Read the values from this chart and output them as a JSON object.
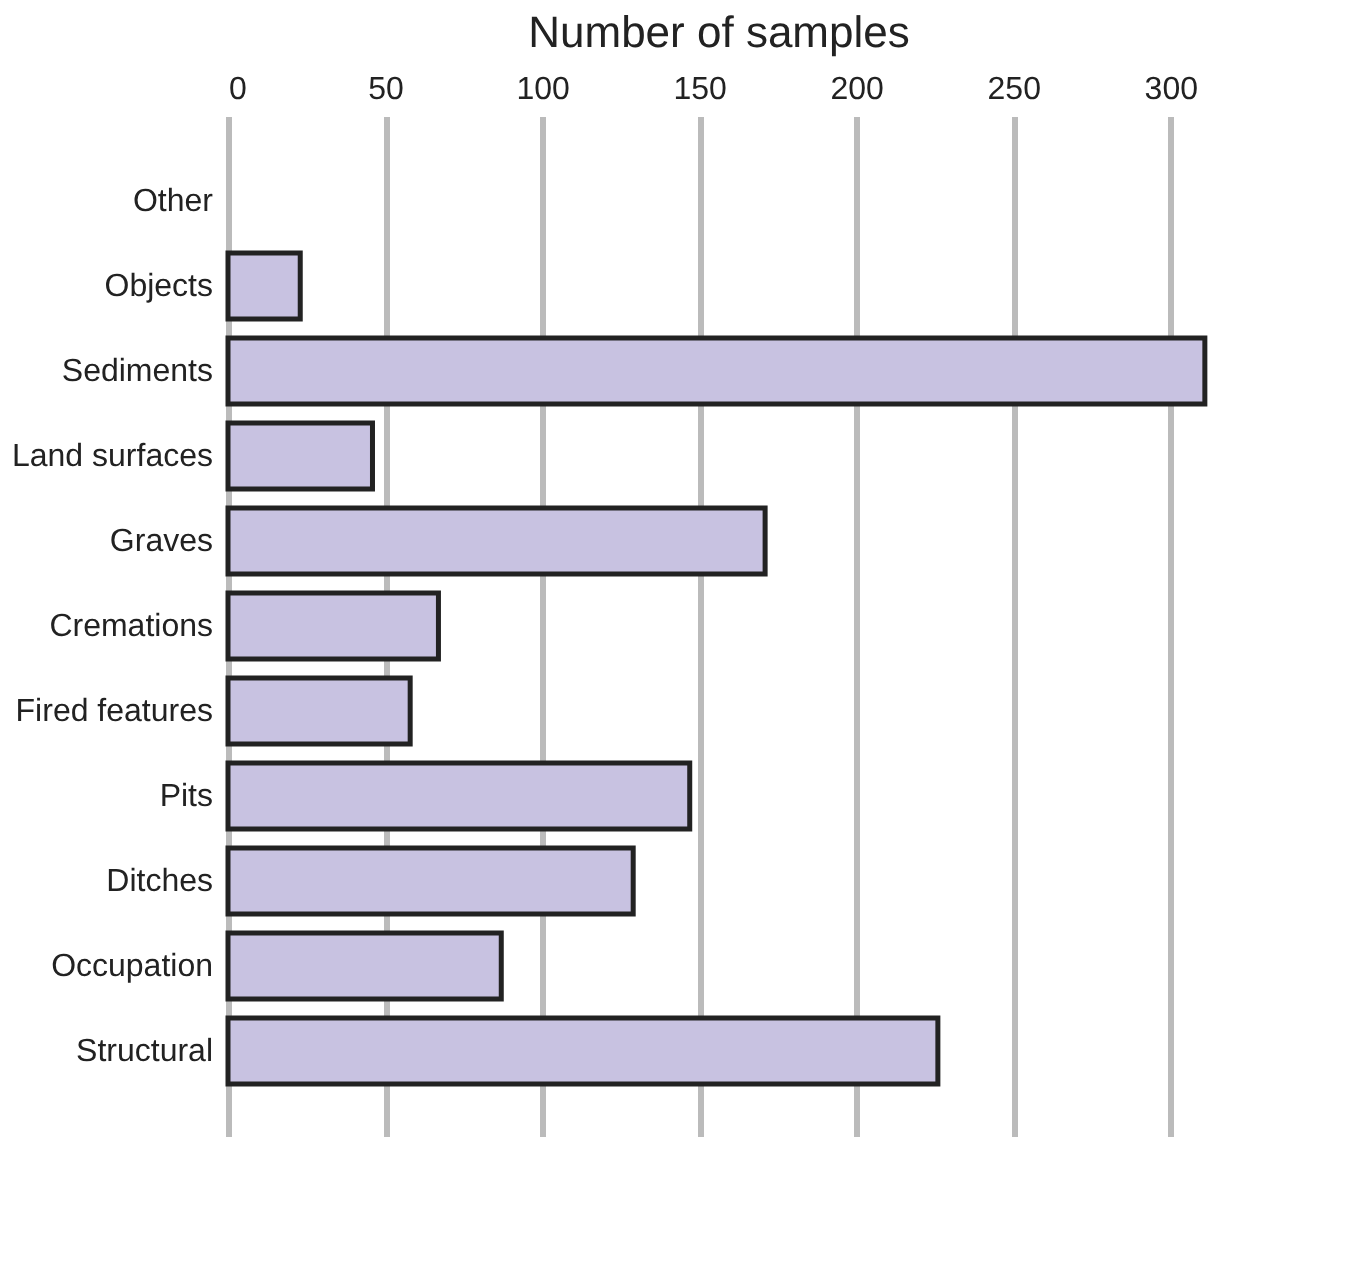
{
  "chart_data": {
    "type": "bar",
    "orientation": "horizontal",
    "xlabel": "Number of samples",
    "categories": [
      "Other",
      "Objects",
      "Sediments",
      "Land surfaces",
      "Graves",
      "Cremations",
      "Fired features",
      "Pits",
      "Ditches",
      "Occupation",
      "Structural"
    ],
    "values": [
      0,
      23,
      311,
      46,
      171,
      67,
      58,
      147,
      129,
      87,
      226
    ],
    "color": "#c8c2e1",
    "xlim": [
      0,
      312
    ],
    "xticks": [
      0,
      50,
      100,
      150,
      200,
      250,
      300
    ],
    "grid": "x"
  }
}
